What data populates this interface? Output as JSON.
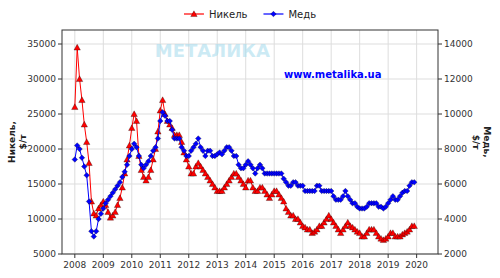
{
  "chart_data": {
    "type": "line",
    "x": [
      2008,
      2008.083333,
      2008.166667,
      2008.25,
      2008.333333,
      2008.416667,
      2008.5,
      2008.583333,
      2008.666667,
      2008.75,
      2008.833333,
      2008.916667,
      2009,
      2009.083333,
      2009.166667,
      2009.25,
      2009.333333,
      2009.416667,
      2009.5,
      2009.583333,
      2009.666667,
      2009.75,
      2009.833333,
      2009.916667,
      2010,
      2010.083333,
      2010.166667,
      2010.25,
      2010.333333,
      2010.416667,
      2010.5,
      2010.583333,
      2010.666667,
      2010.75,
      2010.833333,
      2010.916667,
      2011,
      2011.083333,
      2011.166667,
      2011.25,
      2011.333333,
      2011.416667,
      2011.5,
      2011.583333,
      2011.666667,
      2011.75,
      2011.833333,
      2011.916667,
      2012,
      2012.083333,
      2012.166667,
      2012.25,
      2012.333333,
      2012.416667,
      2012.5,
      2012.583333,
      2012.666667,
      2012.75,
      2012.833333,
      2012.916667,
      2013,
      2013.083333,
      2013.166667,
      2013.25,
      2013.333333,
      2013.416667,
      2013.5,
      2013.583333,
      2013.666667,
      2013.75,
      2013.833333,
      2013.916667,
      2014,
      2014.083333,
      2014.166667,
      2014.25,
      2014.333333,
      2014.416667,
      2014.5,
      2014.583333,
      2014.666667,
      2014.75,
      2014.833333,
      2014.916667,
      2015,
      2015.083333,
      2015.166667,
      2015.25,
      2015.333333,
      2015.416667,
      2015.5,
      2015.583333,
      2015.666667,
      2015.75,
      2015.833333,
      2015.916667,
      2016,
      2016.083333,
      2016.166667,
      2016.25,
      2016.333333,
      2016.416667,
      2016.5,
      2016.583333,
      2016.666667,
      2016.75,
      2016.833333,
      2016.916667,
      2017,
      2017.083333,
      2017.166667,
      2017.25,
      2017.333333,
      2017.416667,
      2017.5,
      2017.583333,
      2017.666667,
      2017.75,
      2017.833333,
      2017.916667,
      2018,
      2018.083333,
      2018.166667,
      2018.25,
      2018.333333,
      2018.416667,
      2018.5,
      2018.583333,
      2018.666667,
      2018.75,
      2018.833333,
      2018.916667,
      2019,
      2019.083333,
      2019.166667,
      2019.25,
      2019.333333,
      2019.416667,
      2019.5,
      2019.583333,
      2019.666667,
      2019.75,
      2019.833333,
      2019.916667
    ],
    "xlim": [
      2007.55,
      2020.75
    ],
    "xticks": [
      2008,
      2009,
      2010,
      2011,
      2012,
      2013,
      2014,
      2015,
      2016,
      2017,
      2018,
      2019,
      2020
    ],
    "ylim": [
      5000,
      37000
    ],
    "yticks": [
      5000,
      10000,
      15000,
      20000,
      25000,
      30000,
      35000
    ],
    "y2lim": [
      2000,
      14800
    ],
    "y2ticks": [
      2000,
      4000,
      6000,
      8000,
      10000,
      12000,
      14000
    ],
    "y_label": "Никель,\n$/т",
    "y2_label": "Медь,\n$/т",
    "grid": true,
    "legend": "top",
    "annotations": [
      {
        "text": "www.metalika.ua"
      },
      {
        "text": "МЕТАЛИКА"
      }
    ],
    "series": [
      {
        "name": "Никель",
        "color": "red",
        "marker": "triangle",
        "values": [
          26000,
          34500,
          30000,
          27000,
          23500,
          21000,
          18000,
          12500,
          10800,
          10500,
          11500,
          12000,
          12500,
          12000,
          11000,
          10200,
          10500,
          11000,
          12000,
          13000,
          14500,
          16500,
          18500,
          20500,
          23000,
          25000,
          24000,
          19000,
          17000,
          16000,
          15500,
          16000,
          17000,
          18500,
          20000,
          22500,
          25500,
          27000,
          25000,
          24000,
          23500,
          23000,
          22000,
          22000,
          22000,
          21000,
          19500,
          18500,
          17500,
          16500,
          16500,
          17500,
          18000,
          17500,
          17000,
          16500,
          16000,
          15500,
          15000,
          14500,
          14000,
          14000,
          14000,
          14500,
          15000,
          15500,
          16000,
          16500,
          16500,
          16000,
          15500,
          15000,
          14500,
          15500,
          15500,
          14500,
          14000,
          14000,
          14500,
          14500,
          14000,
          13500,
          13000,
          13500,
          14000,
          14000,
          13500,
          13000,
          12500,
          11500,
          11000,
          10500,
          10500,
          10000,
          10000,
          9500,
          9000,
          8800,
          8500,
          8500,
          8000,
          8200,
          8500,
          9000,
          9000,
          9500,
          10000,
          10500,
          10000,
          9500,
          9000,
          8500,
          8000,
          8500,
          9000,
          9500,
          9000,
          8800,
          8500,
          8200,
          8000,
          7500,
          7500,
          8000,
          8500,
          8500,
          8500,
          8000,
          7500,
          7200,
          7000,
          7200,
          7500,
          8000,
          8000,
          7500,
          7500,
          7500,
          7800,
          8000,
          8200,
          8500,
          9000,
          9000
        ]
      },
      {
        "name": "Медь",
        "color": "blue",
        "marker": "diamond",
        "axis": "y2",
        "values": [
          7400,
          8200,
          8000,
          7500,
          7000,
          6500,
          5000,
          3300,
          3000,
          3300,
          4000,
          4300,
          4600,
          4900,
          5100,
          5300,
          5500,
          5700,
          5900,
          6100,
          6400,
          6700,
          7100,
          7600,
          8000,
          8300,
          8100,
          7600,
          7100,
          6900,
          7100,
          7300,
          7600,
          7900,
          8100,
          8600,
          9600,
          10100,
          9900,
          9600,
          9600,
          9100,
          8600,
          8600,
          8600,
          8100,
          7900,
          7600,
          7600,
          7900,
          8100,
          8300,
          8600,
          8100,
          7900,
          7600,
          7900,
          7900,
          7600,
          7600,
          7700,
          7800,
          7700,
          7900,
          8100,
          8100,
          7900,
          7600,
          7600,
          7100,
          6900,
          6900,
          7100,
          7300,
          7100,
          6900,
          6600,
          6900,
          7100,
          6900,
          6600,
          6600,
          6600,
          6600,
          6600,
          6600,
          6600,
          6600,
          6300,
          6100,
          5900,
          5900,
          6100,
          6100,
          5900,
          5900,
          5900,
          5600,
          5600,
          5600,
          5600,
          5600,
          5900,
          5900,
          5600,
          5600,
          5600,
          5600,
          5600,
          5300,
          5100,
          5100,
          5100,
          5300,
          5600,
          5300,
          5100,
          4900,
          4900,
          4700,
          4600,
          4600,
          4600,
          4700,
          4900,
          4900,
          4900,
          4900,
          4700,
          4700,
          4600,
          4700,
          4900,
          5100,
          5300,
          5100,
          5100,
          5300,
          5500,
          5600,
          5600,
          5900,
          6100,
          6100
        ]
      }
    ]
  }
}
